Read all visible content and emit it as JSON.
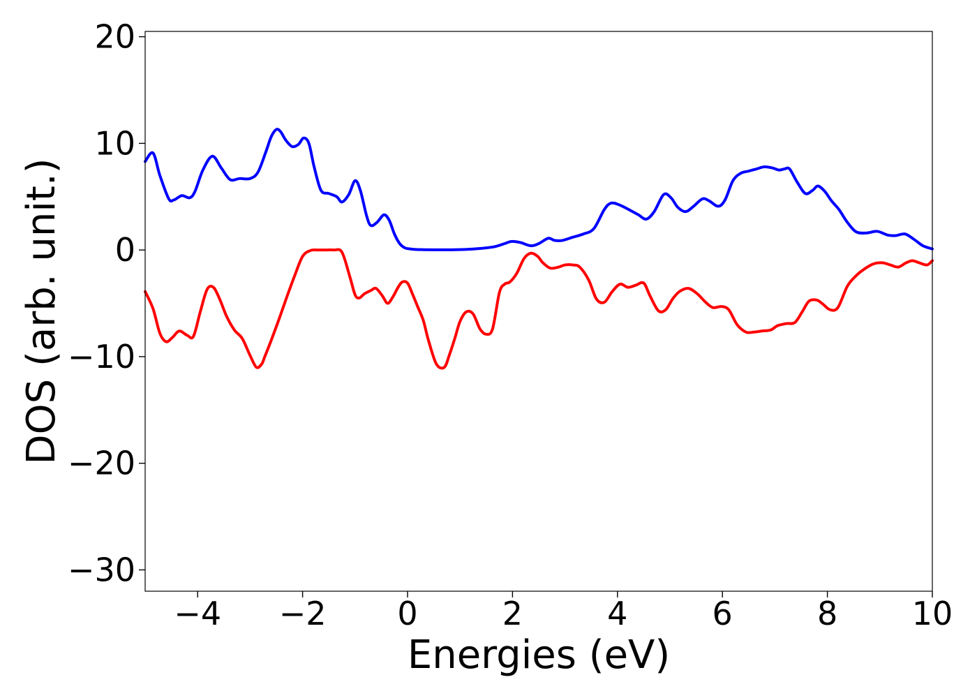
{
  "chart_data": {
    "type": "line",
    "xlabel": "Energies (eV)",
    "ylabel": "DOS (arb. unit.)",
    "xlim": [
      -5,
      10
    ],
    "ylim": [
      -32,
      20.5
    ],
    "xticks": [
      -4,
      -2,
      0,
      2,
      4,
      6,
      8,
      10
    ],
    "yticks": [
      -30,
      -20,
      -10,
      0,
      10,
      20
    ],
    "xtick_labels": [
      "−4",
      "−2",
      "0",
      "2",
      "4",
      "6",
      "8",
      "10"
    ],
    "ytick_labels": [
      "−30",
      "−20",
      "−10",
      "0",
      "10",
      "20"
    ],
    "grid": false,
    "series": [
      {
        "color": "#0000ff",
        "x": [
          -5.0,
          -4.85,
          -4.72,
          -4.55,
          -4.45,
          -4.3,
          -4.15,
          -4.05,
          -3.9,
          -3.72,
          -3.55,
          -3.38,
          -3.2,
          -3.0,
          -2.85,
          -2.7,
          -2.6,
          -2.5,
          -2.42,
          -2.32,
          -2.2,
          -2.08,
          -1.98,
          -1.88,
          -1.78,
          -1.65,
          -1.5,
          -1.35,
          -1.25,
          -1.12,
          -1.0,
          -0.9,
          -0.78,
          -0.7,
          -0.58,
          -0.45,
          -0.35,
          -0.25,
          -0.15,
          -0.05,
          0.05,
          0.15,
          0.3,
          0.5,
          0.8,
          1.1,
          1.4,
          1.65,
          1.85,
          1.98,
          2.15,
          2.35,
          2.5,
          2.68,
          2.8,
          2.95,
          3.15,
          3.35,
          3.55,
          3.75,
          3.88,
          4.05,
          4.25,
          4.4,
          4.55,
          4.7,
          4.88,
          5.02,
          5.15,
          5.3,
          5.45,
          5.62,
          5.75,
          5.92,
          6.05,
          6.2,
          6.35,
          6.5,
          6.65,
          6.8,
          6.95,
          7.08,
          7.18,
          7.28,
          7.42,
          7.58,
          7.72,
          7.82,
          7.95,
          8.08,
          8.22,
          8.38,
          8.55,
          8.75,
          8.95,
          9.15,
          9.3,
          9.48,
          9.65,
          9.82,
          10.0
        ],
        "y": [
          8.3,
          9.1,
          7.0,
          4.8,
          4.7,
          5.1,
          4.9,
          5.5,
          7.5,
          8.8,
          7.7,
          6.6,
          6.7,
          6.7,
          7.3,
          9.2,
          10.6,
          11.3,
          11.1,
          10.3,
          9.7,
          9.9,
          10.5,
          10.0,
          7.8,
          5.6,
          5.3,
          5.0,
          4.5,
          5.2,
          6.5,
          5.6,
          3.2,
          2.3,
          2.6,
          3.3,
          2.8,
          1.5,
          0.6,
          0.2,
          0.1,
          0.05,
          0.03,
          0.02,
          0.02,
          0.05,
          0.15,
          0.3,
          0.6,
          0.8,
          0.7,
          0.4,
          0.6,
          1.1,
          0.9,
          0.9,
          1.2,
          1.5,
          2.0,
          3.8,
          4.4,
          4.2,
          3.7,
          3.3,
          2.9,
          3.6,
          5.2,
          4.9,
          4.0,
          3.6,
          4.1,
          4.8,
          4.6,
          4.1,
          4.7,
          6.5,
          7.2,
          7.4,
          7.6,
          7.8,
          7.7,
          7.5,
          7.6,
          7.6,
          6.4,
          5.3,
          5.6,
          6.0,
          5.5,
          4.6,
          3.8,
          2.6,
          1.7,
          1.6,
          1.75,
          1.4,
          1.35,
          1.5,
          1.0,
          0.4,
          0.1
        ]
      },
      {
        "color": "#ff0000",
        "x": [
          -5.0,
          -4.85,
          -4.72,
          -4.6,
          -4.48,
          -4.35,
          -4.2,
          -4.08,
          -3.95,
          -3.82,
          -3.7,
          -3.58,
          -3.45,
          -3.3,
          -3.15,
          -3.0,
          -2.88,
          -2.78,
          -2.72,
          -2.6,
          -2.45,
          -2.3,
          -2.15,
          -2.0,
          -1.85,
          -1.7,
          -1.55,
          -1.4,
          -1.25,
          -1.1,
          -1.0,
          -0.92,
          -0.82,
          -0.7,
          -0.6,
          -0.48,
          -0.38,
          -0.28,
          -0.18,
          -0.1,
          0.0,
          0.1,
          0.2,
          0.3,
          0.4,
          0.55,
          0.7,
          0.8,
          0.9,
          1.0,
          1.12,
          1.25,
          1.38,
          1.5,
          1.62,
          1.75,
          1.85,
          1.95,
          2.08,
          2.22,
          2.35,
          2.48,
          2.58,
          2.72,
          2.88,
          3.0,
          3.15,
          3.28,
          3.45,
          3.6,
          3.75,
          3.9,
          4.05,
          4.2,
          4.35,
          4.5,
          4.62,
          4.78,
          4.92,
          5.05,
          5.18,
          5.35,
          5.52,
          5.68,
          5.82,
          5.98,
          6.12,
          6.28,
          6.45,
          6.6,
          6.75,
          6.92,
          7.05,
          7.22,
          7.38,
          7.52,
          7.65,
          7.8,
          7.92,
          8.05,
          8.2,
          8.38,
          8.55,
          8.7,
          8.88,
          9.05,
          9.2,
          9.35,
          9.5,
          9.62,
          9.75,
          9.9,
          10.0
        ],
        "y": [
          -3.9,
          -5.5,
          -7.8,
          -8.6,
          -8.2,
          -7.6,
          -8.0,
          -8.1,
          -5.8,
          -3.7,
          -3.5,
          -4.6,
          -6.2,
          -7.5,
          -8.3,
          -9.9,
          -11.0,
          -10.7,
          -10.0,
          -8.5,
          -6.5,
          -4.4,
          -2.4,
          -0.6,
          -0.05,
          0.0,
          0.0,
          0.0,
          -0.2,
          -2.5,
          -4.2,
          -4.5,
          -4.1,
          -3.8,
          -3.6,
          -4.3,
          -5.0,
          -4.4,
          -3.5,
          -3.0,
          -3.1,
          -4.2,
          -5.4,
          -6.6,
          -8.5,
          -10.7,
          -11.0,
          -9.8,
          -8.3,
          -6.7,
          -5.8,
          -6.0,
          -7.4,
          -7.9,
          -7.4,
          -4.0,
          -3.2,
          -3.0,
          -2.2,
          -0.8,
          -0.3,
          -0.6,
          -1.2,
          -1.7,
          -1.6,
          -1.4,
          -1.4,
          -1.6,
          -2.8,
          -4.6,
          -4.9,
          -3.9,
          -3.2,
          -3.5,
          -3.3,
          -3.1,
          -4.3,
          -5.7,
          -5.6,
          -4.6,
          -3.9,
          -3.6,
          -4.1,
          -4.9,
          -5.4,
          -5.3,
          -5.6,
          -7.0,
          -7.7,
          -7.7,
          -7.6,
          -7.5,
          -7.1,
          -6.9,
          -6.8,
          -5.8,
          -4.8,
          -4.7,
          -5.1,
          -5.6,
          -5.4,
          -3.4,
          -2.4,
          -1.8,
          -1.3,
          -1.2,
          -1.4,
          -1.6,
          -1.2,
          -1.0,
          -1.2,
          -1.4,
          -1.0
        ]
      }
    ]
  }
}
